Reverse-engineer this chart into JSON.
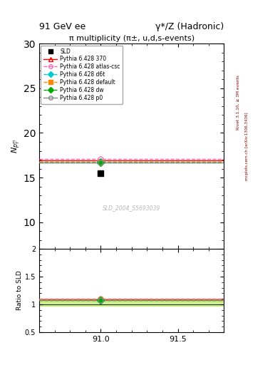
{
  "title_left": "91 GeV ee",
  "title_right": "γ*/Z (Hadronic)",
  "plot_title": "π multiplicity (π±, u,d,s-events)",
  "ylabel_main": "$N_{p_T^m}$",
  "ylabel_ratio": "Ratio to SLD",
  "watermark": "SLD_2004_S5693039",
  "right_label": "Rivet 3.1.10, ≥ 3M events",
  "right_label2": "mcplots.cern.ch [arXiv:1306.3436]",
  "xlim": [
    90.6,
    91.8
  ],
  "ylim_main": [
    7,
    30
  ],
  "ylim_ratio": [
    0.5,
    2.0
  ],
  "yticks_main": [
    10,
    15,
    20,
    25,
    30
  ],
  "xticks": [
    91.0,
    91.5
  ],
  "x_data": 91.0,
  "sld_value": 15.5,
  "sld_color": "#000000",
  "lines": [
    {
      "label": "Pythia 6.428 370",
      "value": 16.95,
      "color": "#ff0000",
      "linestyle": "-",
      "marker": "^",
      "mfc": "none"
    },
    {
      "label": "Pythia 6.428 atlas-csc",
      "value": 17.05,
      "color": "#ff69b4",
      "linestyle": "--",
      "marker": "o",
      "mfc": "none"
    },
    {
      "label": "Pythia 6.428 d6t",
      "value": 16.75,
      "color": "#00cccc",
      "linestyle": "--",
      "marker": "D",
      "mfc": "#00cccc"
    },
    {
      "label": "Pythia 6.428 default",
      "value": 16.8,
      "color": "#ff8800",
      "linestyle": "--",
      "marker": "s",
      "mfc": "#ff8800"
    },
    {
      "label": "Pythia 6.428 dw",
      "value": 16.7,
      "color": "#00aa00",
      "linestyle": "--",
      "marker": "D",
      "mfc": "#00aa00"
    },
    {
      "label": "Pythia 6.428 p0",
      "value": 16.65,
      "color": "#888888",
      "linestyle": "-",
      "marker": "o",
      "mfc": "none"
    }
  ],
  "band_color": "#ccee88",
  "band_ratio_low": 0.97,
  "band_ratio_high": 1.1,
  "fig_width": 3.93,
  "fig_height": 5.12,
  "dpi": 100
}
